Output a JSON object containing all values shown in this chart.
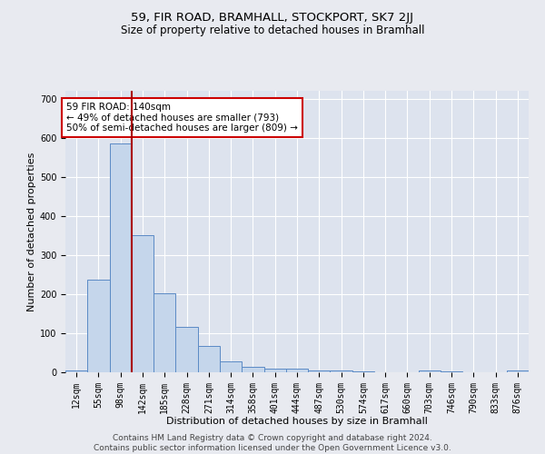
{
  "title1": "59, FIR ROAD, BRAMHALL, STOCKPORT, SK7 2JJ",
  "title2": "Size of property relative to detached houses in Bramhall",
  "xlabel": "Distribution of detached houses by size in Bramhall",
  "ylabel": "Number of detached properties",
  "footer1": "Contains HM Land Registry data © Crown copyright and database right 2024.",
  "footer2": "Contains public sector information licensed under the Open Government Licence v3.0.",
  "bin_labels": [
    "12sqm",
    "55sqm",
    "98sqm",
    "142sqm",
    "185sqm",
    "228sqm",
    "271sqm",
    "314sqm",
    "358sqm",
    "401sqm",
    "444sqm",
    "487sqm",
    "530sqm",
    "574sqm",
    "617sqm",
    "660sqm",
    "703sqm",
    "746sqm",
    "790sqm",
    "833sqm",
    "876sqm"
  ],
  "bar_heights": [
    5,
    238,
    585,
    350,
    203,
    117,
    68,
    27,
    15,
    10,
    10,
    5,
    5,
    3,
    0,
    0,
    5,
    3,
    0,
    0,
    5
  ],
  "bar_color": "#c5d6eb",
  "bar_edge_color": "#5b8ac5",
  "red_line_x": 2.5,
  "annotation_text": "59 FIR ROAD: 140sqm\n← 49% of detached houses are smaller (793)\n50% of semi-detached houses are larger (809) →",
  "annotation_box_color": "white",
  "annotation_box_edge": "#cc0000",
  "ylim": [
    0,
    720
  ],
  "yticks": [
    0,
    100,
    200,
    300,
    400,
    500,
    600,
    700
  ],
  "background_color": "#e8eaf0",
  "plot_bg_color": "#dde3ee",
  "grid_color": "white",
  "title1_fontsize": 9.5,
  "title2_fontsize": 8.5,
  "xlabel_fontsize": 8,
  "ylabel_fontsize": 8,
  "tick_fontsize": 7,
  "footer_fontsize": 6.5,
  "annotation_fontsize": 7.5
}
